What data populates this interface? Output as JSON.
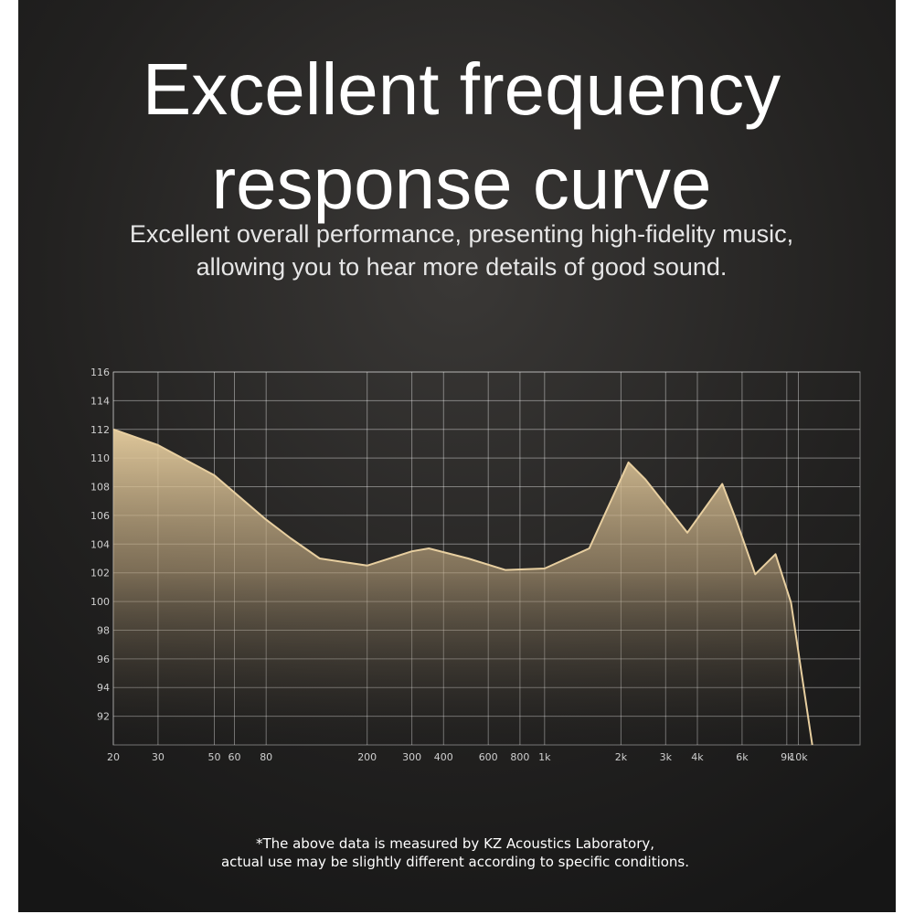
{
  "chart_data": {
    "type": "area",
    "title_lines": [
      "Excellent frequency",
      "response curve"
    ],
    "subtitle_lines": [
      "Excellent overall performance, presenting high-fidelity music,",
      "allowing you to hear more details of good sound."
    ],
    "footnote_lines": [
      "*The above data is measured by KZ Acoustics Laboratory,",
      "actual use may be slightly different according to specific conditions."
    ],
    "xscale": "log",
    "grid": true,
    "color": "#e8cfa0",
    "x": [
      20,
      30,
      50,
      80,
      100,
      130,
      200,
      300,
      350,
      500,
      700,
      1000,
      1500,
      2140,
      2500,
      3650,
      5010,
      5680,
      6760,
      8130,
      9360,
      11340
    ],
    "values": [
      112,
      110.9,
      108.8,
      105.7,
      104.4,
      103,
      102.5,
      103.5,
      103.7,
      103,
      102.2,
      102.3,
      103.7,
      109.7,
      108.5,
      104.8,
      108.2,
      105.7,
      101.9,
      103.3,
      99.9,
      90
    ],
    "xlim": [
      20,
      17500
    ],
    "ylim": [
      90,
      116
    ],
    "xticks": [
      20,
      30,
      50,
      60,
      80,
      200,
      300,
      400,
      600,
      800,
      {
        "value": 1000,
        "label": "1k"
      },
      {
        "value": 2000,
        "label": "2k"
      },
      {
        "value": 3000,
        "label": "3k"
      },
      {
        "value": 4000,
        "label": "4k"
      },
      {
        "value": 6000,
        "label": "6k"
      },
      {
        "value": 9000,
        "label": "9k"
      },
      {
        "value": 10000,
        "label": "10k"
      }
    ],
    "yticks": [
      92,
      94,
      96,
      98,
      100,
      102,
      104,
      106,
      108,
      110,
      112,
      114,
      116
    ]
  }
}
